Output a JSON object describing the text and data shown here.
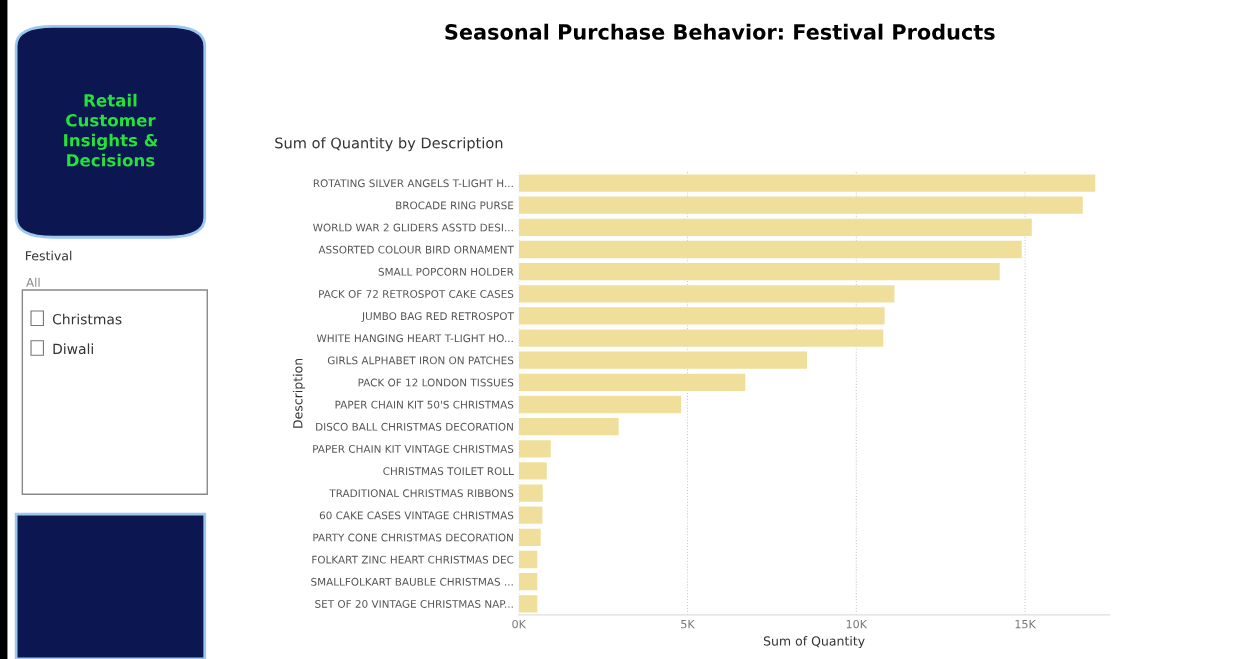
{
  "chart_data": {
    "type": "bar",
    "orientation": "horizontal",
    "title": "Seasonal Purchase Behavior: Festival Products",
    "subtitle": "Sum of Quantity by Description",
    "xlabel": "Sum of Quantity",
    "ylabel": "Description",
    "categories": [
      "ROTATING SILVER ANGELS T-LIGHT H...",
      "BROCADE RING PURSE",
      "WORLD WAR 2 GLIDERS ASSTD DESI...",
      "ASSORTED COLOUR BIRD ORNAMENT",
      "SMALL POPCORN HOLDER",
      "PACK OF 72 RETROSPOT CAKE CASES",
      "JUMBO BAG RED RETROSPOT",
      "WHITE HANGING HEART T-LIGHT HO...",
      "GIRLS ALPHABET IRON ON PATCHES",
      "PACK OF 12 LONDON TISSUES",
      "PAPER CHAIN KIT 50'S CHRISTMAS",
      "DISCO BALL CHRISTMAS DECORATION",
      "PAPER CHAIN KIT VINTAGE CHRISTMAS",
      "CHRISTMAS TOILET ROLL",
      "TRADITIONAL CHRISTMAS RIBBONS",
      "60 CAKE CASES VINTAGE CHRISTMAS",
      "PARTY CONE CHRISTMAS DECORATION",
      "FOLKART ZINC HEART CHRISTMAS DEC",
      "SMALLFOLKART BAUBLE CHRISTMAS ...",
      "SET OF 20 VINTAGE CHRISTMAS NAP..."
    ],
    "values": [
      17080,
      16710,
      15200,
      14900,
      14250,
      11130,
      10840,
      10800,
      8540,
      6710,
      4810,
      2960,
      950,
      830,
      710,
      700,
      650,
      550,
      550,
      550
    ],
    "color": "#efdf9b",
    "xlim": [
      0,
      17500
    ],
    "xticks": [
      {
        "value": 0,
        "label": "0K"
      },
      {
        "value": 5000,
        "label": "5K"
      },
      {
        "value": 10000,
        "label": "10K"
      },
      {
        "value": 15000,
        "label": "15K"
      }
    ],
    "grid": "x",
    "annotations": [
      "Retail Customer Insights & Decisions",
      "Festival",
      "All",
      "Christmas",
      "Diwali"
    ]
  }
}
